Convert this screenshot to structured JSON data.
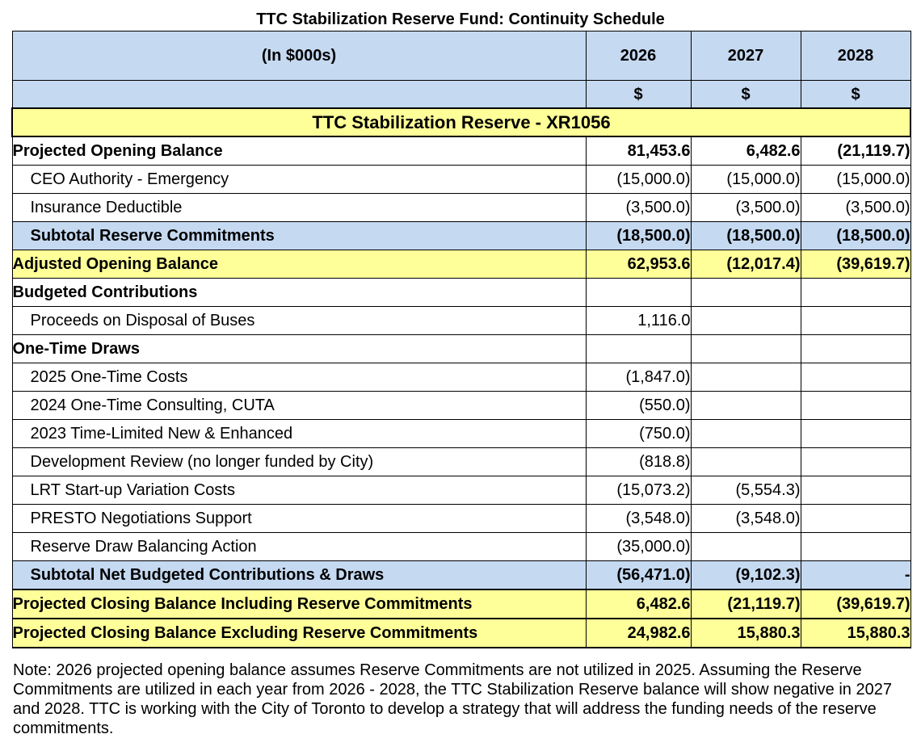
{
  "title": "TTC Stabilization Reserve Fund: Continuity Schedule",
  "header": {
    "label": "(In $000s)",
    "years": [
      "2026",
      "2027",
      "2028"
    ],
    "currency": [
      "$",
      "$",
      "$"
    ]
  },
  "section_title": "TTC Stabilization Reserve - XR1056",
  "rows": [
    {
      "label": "Projected Opening Balance",
      "values": [
        "81,453.6",
        "6,482.6",
        "(21,119.7)"
      ]
    },
    {
      "label": "CEO Authority - Emergency",
      "values": [
        "(15,000.0)",
        "(15,000.0)",
        "(15,000.0)"
      ]
    },
    {
      "label": "Insurance Deductible",
      "values": [
        "(3,500.0)",
        "(3,500.0)",
        "(3,500.0)"
      ]
    },
    {
      "label": "Subtotal Reserve Commitments",
      "values": [
        "(18,500.0)",
        "(18,500.0)",
        "(18,500.0)"
      ]
    },
    {
      "label": "Adjusted Opening Balance",
      "values": [
        "62,953.6",
        "(12,017.4)",
        "(39,619.7)"
      ]
    },
    {
      "label": "Budgeted Contributions",
      "values": [
        "",
        "",
        ""
      ]
    },
    {
      "label": "Proceeds on Disposal of Buses",
      "values": [
        "1,116.0",
        "",
        ""
      ]
    },
    {
      "label": "One-Time Draws",
      "values": [
        "",
        "",
        ""
      ]
    },
    {
      "label": "2025 One-Time Costs",
      "values": [
        "(1,847.0)",
        "",
        ""
      ]
    },
    {
      "label": "2024 One-Time Consulting, CUTA",
      "values": [
        "(550.0)",
        "",
        ""
      ]
    },
    {
      "label": "2023 Time-Limited New & Enhanced",
      "values": [
        "(750.0)",
        "",
        ""
      ]
    },
    {
      "label": "Development Review (no longer funded by City)",
      "values": [
        "(818.8)",
        "",
        ""
      ]
    },
    {
      "label": "LRT Start-up Variation Costs",
      "values": [
        "(15,073.2)",
        "(5,554.3)",
        ""
      ]
    },
    {
      "label": "PRESTO Negotiations Support",
      "values": [
        "(3,548.0)",
        "(3,548.0)",
        ""
      ]
    },
    {
      "label": "Reserve Draw Balancing Action",
      "values": [
        "(35,000.0)",
        "",
        ""
      ]
    },
    {
      "label": "Subtotal Net Budgeted Contributions & Draws",
      "values": [
        "(56,471.0)",
        "(9,102.3)",
        "-"
      ]
    },
    {
      "label": "Projected Closing Balance Including Reserve Commitments",
      "values": [
        "6,482.6",
        "(21,119.7)",
        "(39,619.7)"
      ]
    },
    {
      "label": "Projected Closing Balance Excluding Reserve Commitments",
      "values": [
        "24,982.6",
        "15,880.3",
        "15,880.3"
      ]
    }
  ],
  "note": "Note: 2026 projected opening balance assumes Reserve Commitments are not utilized in 2025. Assuming the Reserve Commitments are utilized in each year from 2026 - 2028, the TTC Stabilization Reserve balance will show negative in 2027 and 2028. TTC is working with the City of Toronto to develop a strategy that will address the funding needs of the reserve commitments."
}
